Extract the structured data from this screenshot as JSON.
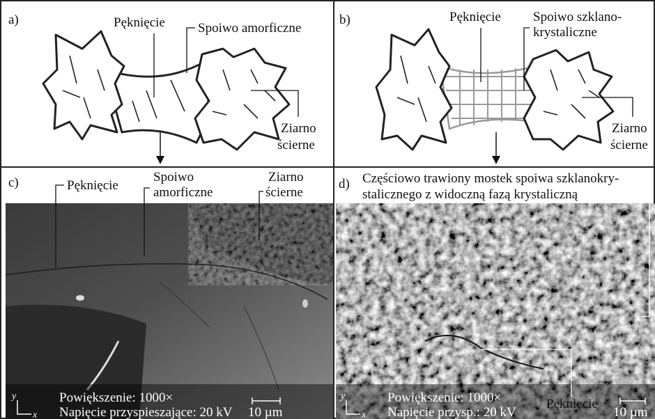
{
  "panel_a": {
    "label": "a)",
    "crack": "Pęknięcie",
    "binder": "Spoiwo amorficzne",
    "grain": [
      "Ziarno",
      "ścierne"
    ]
  },
  "panel_b": {
    "label": "b)",
    "crack": "Pęknięcie",
    "binder": [
      "Spoiwo szklano-",
      "krystaliczne"
    ],
    "grain": [
      "Ziarno",
      "ścierne"
    ]
  },
  "panel_c": {
    "label": "c)",
    "crack": "Pęknięcie",
    "binder": [
      "Spoiwo",
      "amorficzne"
    ],
    "grain": [
      "Ziarno",
      "ścierne"
    ],
    "magnification": "Powiększenie: 1000×",
    "voltage": "Napięcie przyspieszające: 20 kV",
    "scale": "10 µm",
    "axis_y": "y",
    "axis_x": "x"
  },
  "panel_d": {
    "label": "d)",
    "caption": [
      "Częściowo trawiony mostek spoiwa szklanokry-",
      "stalicznego z widoczną fazą krystaliczną"
    ],
    "crack": "Pęknięcie",
    "magnification": "Powiększenie: 1000×",
    "voltage": "Napięcie przysp.: 20 kV",
    "scale": "10 µm",
    "axis_y": "y",
    "axis_x": "x"
  }
}
